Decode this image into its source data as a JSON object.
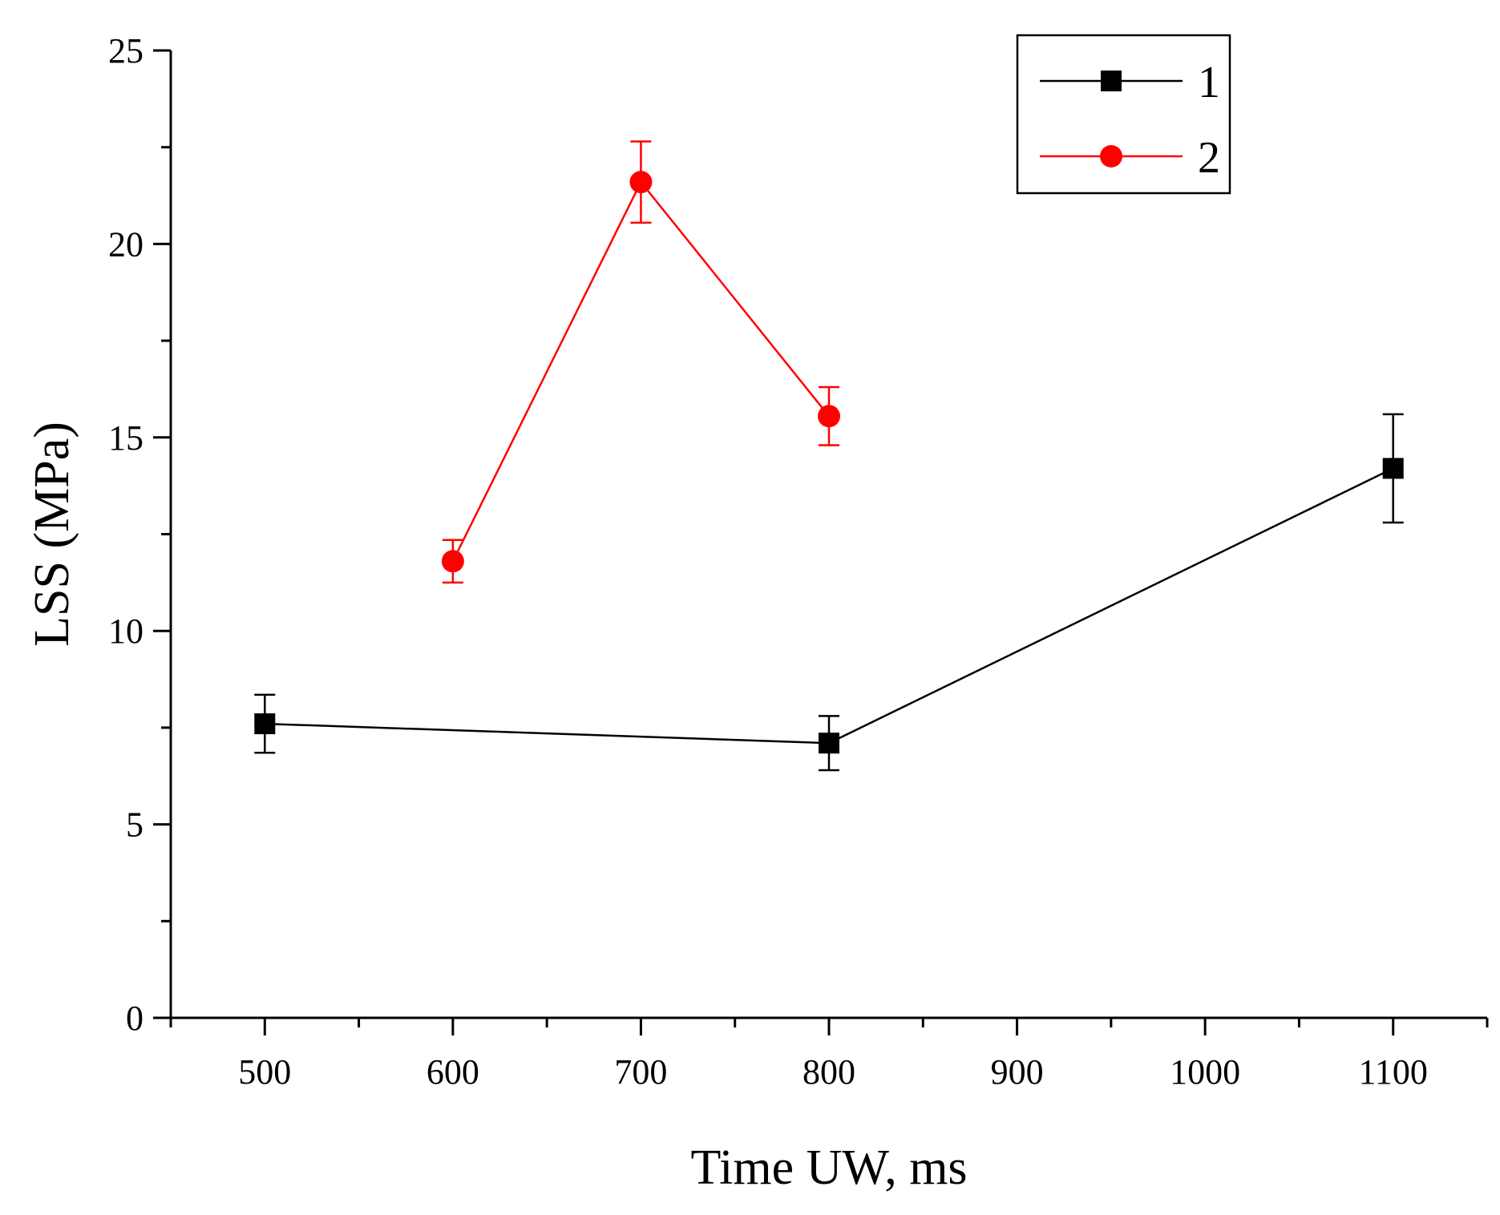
{
  "chart_data": {
    "type": "line",
    "title": "",
    "xlabel": "Time UW, ms",
    "ylabel": "LSS (MPa)",
    "xlim": [
      450,
      1150
    ],
    "ylim": [
      0,
      25
    ],
    "xticks": [
      500,
      600,
      700,
      800,
      900,
      1000,
      1100
    ],
    "xticks_minor": [
      450,
      550,
      650,
      750,
      850,
      950,
      1050,
      1150
    ],
    "yticks": [
      0,
      5,
      10,
      15,
      20,
      25
    ],
    "yticks_minor": [
      2.5,
      7.5,
      12.5,
      17.5,
      22.5
    ],
    "grid": false,
    "legend": "top-right",
    "series": [
      {
        "name": "1",
        "color": "#000000",
        "marker": "square",
        "x": [
          500,
          800,
          1100
        ],
        "y": [
          7.6,
          7.1,
          14.2
        ],
        "err": [
          0.75,
          0.7,
          1.4
        ]
      },
      {
        "name": "2",
        "color": "#ff0000",
        "marker": "circle",
        "x": [
          600,
          700,
          800
        ],
        "y": [
          11.8,
          21.6,
          15.55
        ],
        "err": [
          0.55,
          1.05,
          0.75
        ]
      }
    ]
  }
}
